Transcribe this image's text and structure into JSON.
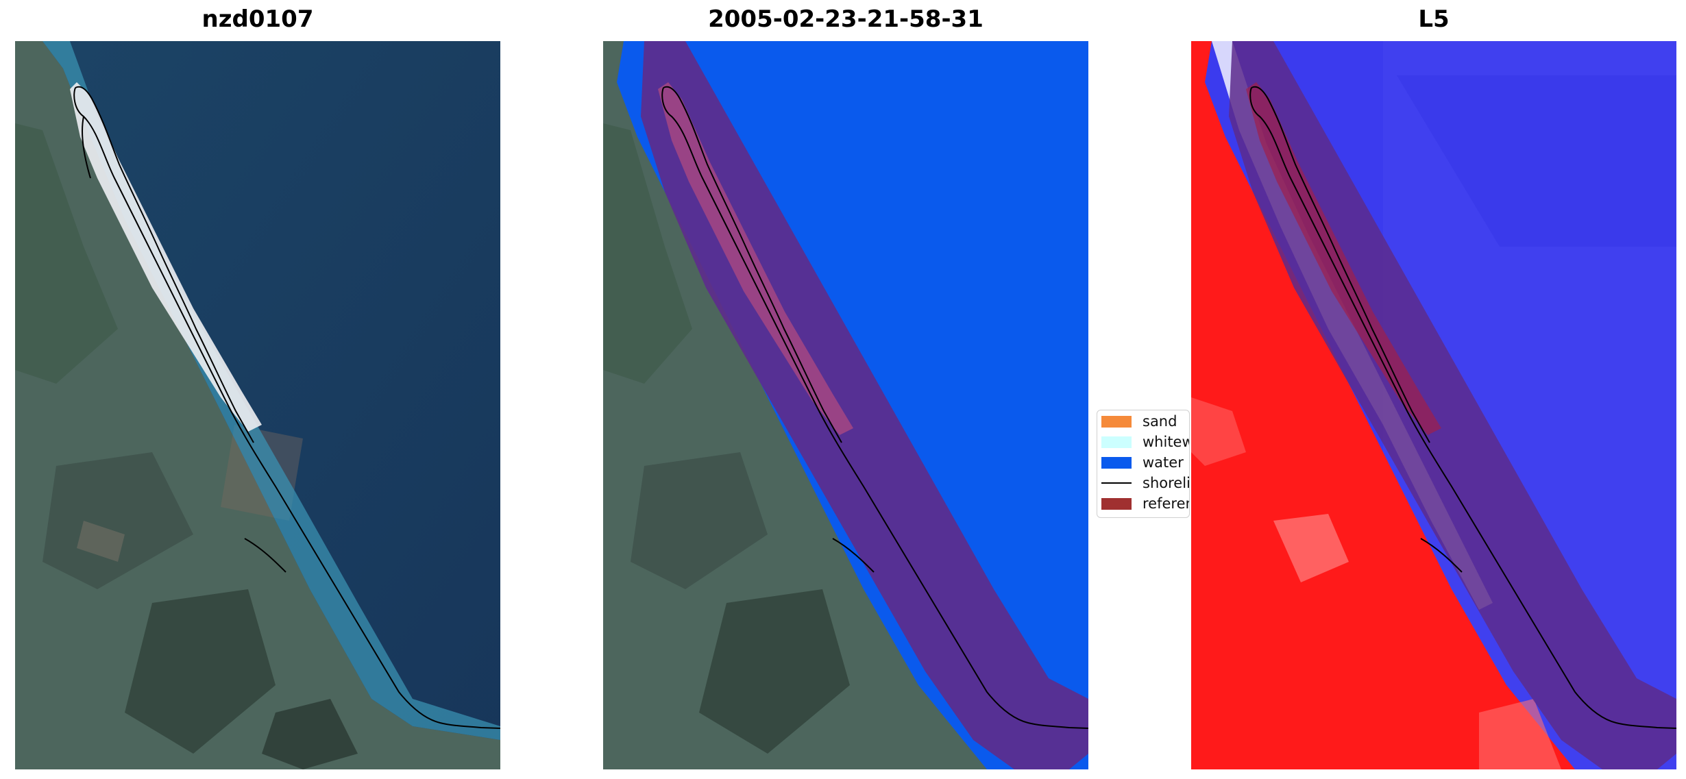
{
  "panels": [
    {
      "title": "nzd0107"
    },
    {
      "title": "2005-02-23-21-58-31"
    },
    {
      "title": "L5"
    }
  ],
  "legend": {
    "items": [
      {
        "label": "sand",
        "color": "#f58a3a",
        "kind": "patch"
      },
      {
        "label": "whitew",
        "color": "#ccffff",
        "kind": "patch"
      },
      {
        "label": "water",
        "color": "#0a5aed",
        "kind": "patch"
      },
      {
        "label": "shoreli",
        "color": "#000000",
        "kind": "line"
      },
      {
        "label": "referen",
        "color": "#a03030",
        "kind": "patch"
      }
    ]
  },
  "colors": {
    "ocean": "#1a3a5e",
    "land": "#4f6a60",
    "water_class": "#0a5aed",
    "buffer_overlay": "#5d2c8c",
    "index_red": "#ff1a1a",
    "index_blue": "#3b3bee"
  }
}
